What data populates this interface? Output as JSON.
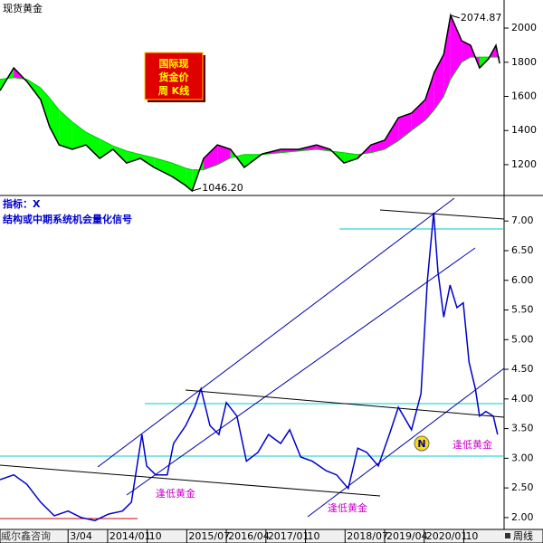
{
  "title": "现货黄金",
  "badge": [
    "国际现",
    "货金价",
    "周 K线"
  ],
  "source": "威尔鑫咨询",
  "period": "周线",
  "chart_data": [
    {
      "type": "line",
      "x": [
        2011.96,
        2012.22,
        2012.47,
        2012.73,
        2012.9,
        2013.08,
        2013.33,
        2013.59,
        2013.85,
        2014.1,
        2014.36,
        2014.62,
        2014.88,
        2015.22,
        2015.48,
        2015.6,
        2015.82,
        2016.08,
        2016.33,
        2016.59,
        2016.93,
        2017.28,
        2017.62,
        2017.96,
        2018.22,
        2018.48,
        2018.74,
        2018.99,
        2019.25,
        2019.51,
        2019.76,
        2020.02,
        2020.19,
        2020.37,
        2020.5,
        2020.71,
        2020.88,
        2021.05,
        2021.22,
        2021.36,
        2021.43
      ],
      "series": [
        {
          "color": "#000000",
          "values": [
            1634,
            1767,
            1687,
            1581,
            1422,
            1316,
            1290,
            1316,
            1237,
            1290,
            1210,
            1237,
            1184,
            1131,
            1078,
            1046.2,
            1237,
            1316,
            1290,
            1184,
            1263,
            1290,
            1290,
            1316,
            1290,
            1210,
            1237,
            1316,
            1343,
            1475,
            1502,
            1581,
            1740,
            1846,
            2074.87,
            1926,
            1899,
            1767,
            1820,
            1899,
            1793
          ],
          "value_labels": [
            null,
            null,
            null,
            null,
            null,
            null,
            null,
            null,
            null,
            null,
            null,
            null,
            null,
            null,
            null,
            "1046.20",
            null,
            null,
            null,
            null,
            null,
            null,
            null,
            null,
            null,
            null,
            null,
            null,
            null,
            null,
            null,
            null,
            null,
            null,
            "2074.87",
            null,
            null,
            null,
            null,
            null,
            null
          ]
        },
        {
          "color": "#00cc00",
          "values": [
            1700,
            1710,
            1700,
            1650,
            1590,
            1520,
            1450,
            1390,
            1350,
            1310,
            1280,
            1260,
            1240,
            1210,
            1180,
            1170,
            1170,
            1200,
            1240,
            1260,
            1260,
            1270,
            1280,
            1290,
            1280,
            1270,
            1260,
            1270,
            1290,
            1340,
            1400,
            1460,
            1520,
            1600,
            1700,
            1800,
            1830,
            1830,
            1830,
            1830,
            1830
          ]
        }
      ],
      "band_colors": [
        "#ff00ff",
        "#00ff00"
      ],
      "xlim": [
        2011.96,
        2021.48
      ],
      "ylim": [
        1025,
        2085
      ],
      "yticks": [
        1200,
        1400,
        1600,
        1800,
        2000
      ]
    },
    {
      "type": "line",
      "title": "指标：X",
      "subtitle": "结构或中期系统机会量化信号",
      "x": [
        2011.96,
        2012.22,
        2012.47,
        2012.73,
        2012.99,
        2013.25,
        2013.5,
        2013.76,
        2014.02,
        2014.28,
        2014.45,
        2014.57,
        2014.65,
        2014.74,
        2014.91,
        2015.13,
        2015.25,
        2015.48,
        2015.65,
        2015.77,
        2015.94,
        2016.11,
        2016.25,
        2016.45,
        2016.63,
        2016.85,
        2017.05,
        2017.28,
        2017.45,
        2017.66,
        2017.88,
        2018.14,
        2018.34,
        2018.56,
        2018.74,
        2018.91,
        2019.13,
        2019.34,
        2019.51,
        2019.76,
        2019.94,
        2020.06,
        2020.18,
        2020.26,
        2020.37,
        2020.49,
        2020.62,
        2020.74,
        2020.85,
        2020.97,
        2021.05,
        2021.17,
        2021.31,
        2021.39
      ],
      "series": [
        {
          "color": "#0000cc",
          "values": [
            2.64,
            2.72,
            2.56,
            2.26,
            2.03,
            2.11,
            2.0,
            1.95,
            2.06,
            2.11,
            2.26,
            2.95,
            3.4,
            2.87,
            2.72,
            2.72,
            3.25,
            3.55,
            3.86,
            4.17,
            3.55,
            3.4,
            3.94,
            3.71,
            2.95,
            3.1,
            3.4,
            3.25,
            3.48,
            3.02,
            2.95,
            2.79,
            2.72,
            2.49,
            3.17,
            3.1,
            2.87,
            3.4,
            3.86,
            3.48,
            4.09,
            5.99,
            7.14,
            6.15,
            5.38,
            5.92,
            5.54,
            5.62,
            4.62,
            4.17,
            3.71,
            3.79,
            3.71,
            3.4
          ]
        }
      ],
      "annotations": [
        "逢低黄金",
        "逢低黄金",
        "逢低黄金"
      ],
      "signal": "N",
      "xlim": [
        2011.96,
        2021.48
      ],
      "ylim": [
        1.8,
        7.4
      ],
      "xticks": [
        {
          "value": 2013.25,
          "label": "3/04"
        },
        {
          "value": 2014.0,
          "label": "2014/01"
        },
        {
          "value": 2014.75,
          "label": "10"
        },
        {
          "value": 2015.5,
          "label": "2015/07"
        },
        {
          "value": 2016.25,
          "label": "2016/04"
        },
        {
          "value": 2017.0,
          "label": "2017/01"
        },
        {
          "value": 2017.75,
          "label": "10"
        },
        {
          "value": 2018.5,
          "label": "2018/07"
        },
        {
          "value": 2019.25,
          "label": "2019/04"
        },
        {
          "value": 2020.0,
          "label": "2020/01"
        },
        {
          "value": 2020.75,
          "label": "10"
        }
      ],
      "yticks": [
        {
          "value": 2.0,
          "label": "2.00"
        },
        {
          "value": 2.5,
          "label": "2.50"
        },
        {
          "value": 3.0,
          "label": "3.00"
        },
        {
          "value": 3.5,
          "label": "3.50"
        },
        {
          "value": 4.0,
          "label": "4.00"
        },
        {
          "value": 4.5,
          "label": "4.50"
        },
        {
          "value": 5.0,
          "label": "5.00"
        },
        {
          "value": 5.5,
          "label": "5.50"
        },
        {
          "value": 6.0,
          "label": "6.00"
        },
        {
          "value": 6.5,
          "label": "6.50"
        },
        {
          "value": 7.0,
          "label": "7.00"
        }
      ]
    }
  ]
}
